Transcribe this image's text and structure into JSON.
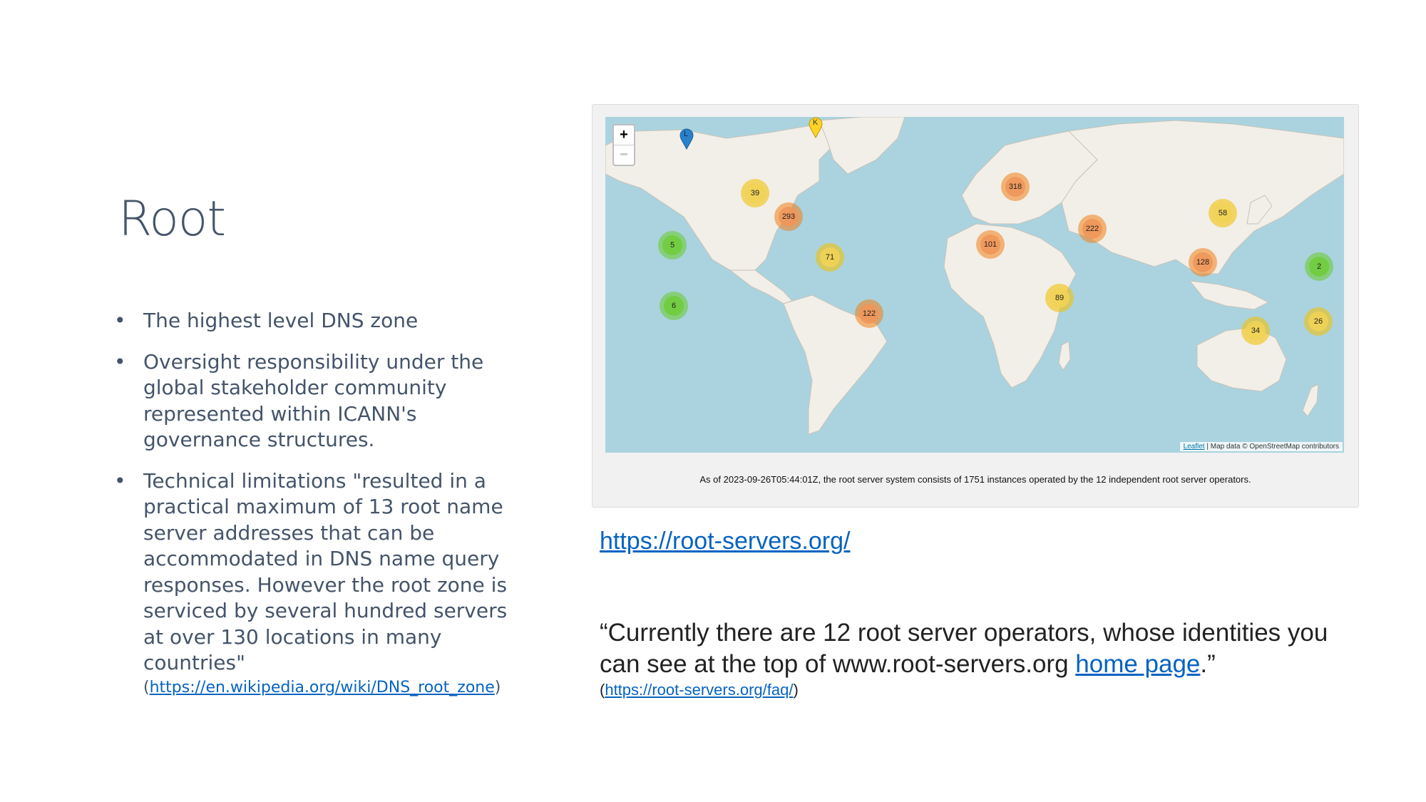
{
  "slide": {
    "title": "Root",
    "bullets": [
      {
        "text": "The highest level DNS zone"
      },
      {
        "text": "Oversight responsibility under the global stakeholder community represented within ICANN's governance structures."
      },
      {
        "text": "Technical limitations \"resulted in a practical maximum of 13 root name server addresses that can be accommodated in DNS name query responses. However the root zone is serviced by several hundred servers at over 130 locations in many countries\"",
        "cite_open": "(",
        "cite_link": "https://en.wikipedia.org/wiki/DNS_root_zone",
        "cite_close": ")"
      }
    ],
    "bullet_glyph": "•"
  },
  "map": {
    "zoom_in": "+",
    "zoom_out": "−",
    "attribution_link": "Leaflet",
    "attribution_text": "| Map data © OpenStreetMap contributors",
    "caption": "As of 2023-09-26T05:44:01Z, the root server system consists of 1751 instances operated by the 12 independent root server operators.",
    "clusters": [
      {
        "label": "39",
        "tier": "yellow"
      },
      {
        "label": "293",
        "tier": "orange"
      },
      {
        "label": "5",
        "tier": "green"
      },
      {
        "label": "6",
        "tier": "green"
      },
      {
        "label": "71",
        "tier": "yellow"
      },
      {
        "label": "122",
        "tier": "orange"
      },
      {
        "label": "318",
        "tier": "orange"
      },
      {
        "label": "101",
        "tier": "orange"
      },
      {
        "label": "222",
        "tier": "orange"
      },
      {
        "label": "89",
        "tier": "yellow"
      },
      {
        "label": "58",
        "tier": "yellow"
      },
      {
        "label": "128",
        "tier": "orange"
      },
      {
        "label": "2",
        "tier": "green"
      },
      {
        "label": "34",
        "tier": "yellow"
      },
      {
        "label": "26",
        "tier": "yellow"
      }
    ],
    "pins": [
      {
        "label": "L",
        "color": "#2a81cb"
      },
      {
        "label": "K",
        "color": "#ffd326"
      }
    ]
  },
  "links": {
    "main_url": "https://root-servers.org/"
  },
  "quote": {
    "before": "“Currently there are 12 root server operators, whose identities you can see at the top of www.root-servers.org ",
    "link": "home page",
    "after": ".”",
    "cite_open": "(",
    "cite_link": "https://root-servers.org/faq/",
    "cite_close": ")"
  }
}
